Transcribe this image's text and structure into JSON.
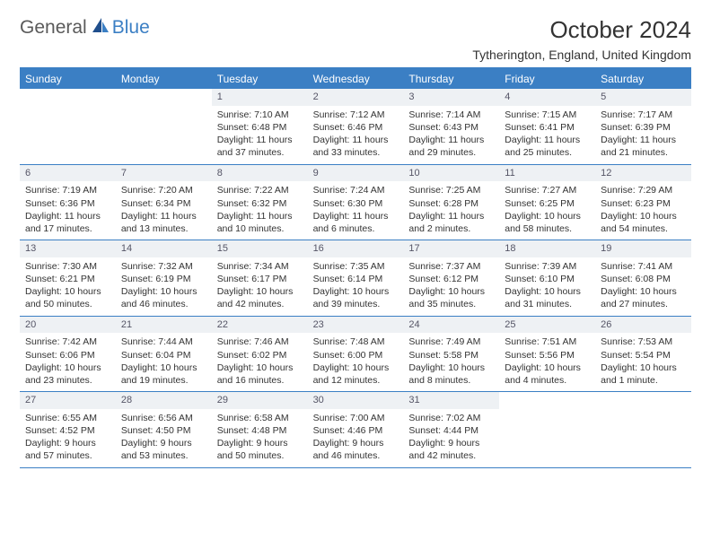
{
  "logo": {
    "text1": "General",
    "text2": "Blue"
  },
  "title": "October 2024",
  "location": "Tytherington, England, United Kingdom",
  "colors": {
    "accent": "#3b7fc4",
    "dayNumBg": "#eef1f4",
    "text": "#333333",
    "logoGray": "#5a5a5a"
  },
  "weekdays": [
    "Sunday",
    "Monday",
    "Tuesday",
    "Wednesday",
    "Thursday",
    "Friday",
    "Saturday"
  ],
  "weeks": [
    [
      {
        "num": "",
        "sunrise": "",
        "sunset": "",
        "daylight": ""
      },
      {
        "num": "",
        "sunrise": "",
        "sunset": "",
        "daylight": ""
      },
      {
        "num": "1",
        "sunrise": "Sunrise: 7:10 AM",
        "sunset": "Sunset: 6:48 PM",
        "daylight": "Daylight: 11 hours and 37 minutes."
      },
      {
        "num": "2",
        "sunrise": "Sunrise: 7:12 AM",
        "sunset": "Sunset: 6:46 PM",
        "daylight": "Daylight: 11 hours and 33 minutes."
      },
      {
        "num": "3",
        "sunrise": "Sunrise: 7:14 AM",
        "sunset": "Sunset: 6:43 PM",
        "daylight": "Daylight: 11 hours and 29 minutes."
      },
      {
        "num": "4",
        "sunrise": "Sunrise: 7:15 AM",
        "sunset": "Sunset: 6:41 PM",
        "daylight": "Daylight: 11 hours and 25 minutes."
      },
      {
        "num": "5",
        "sunrise": "Sunrise: 7:17 AM",
        "sunset": "Sunset: 6:39 PM",
        "daylight": "Daylight: 11 hours and 21 minutes."
      }
    ],
    [
      {
        "num": "6",
        "sunrise": "Sunrise: 7:19 AM",
        "sunset": "Sunset: 6:36 PM",
        "daylight": "Daylight: 11 hours and 17 minutes."
      },
      {
        "num": "7",
        "sunrise": "Sunrise: 7:20 AM",
        "sunset": "Sunset: 6:34 PM",
        "daylight": "Daylight: 11 hours and 13 minutes."
      },
      {
        "num": "8",
        "sunrise": "Sunrise: 7:22 AM",
        "sunset": "Sunset: 6:32 PM",
        "daylight": "Daylight: 11 hours and 10 minutes."
      },
      {
        "num": "9",
        "sunrise": "Sunrise: 7:24 AM",
        "sunset": "Sunset: 6:30 PM",
        "daylight": "Daylight: 11 hours and 6 minutes."
      },
      {
        "num": "10",
        "sunrise": "Sunrise: 7:25 AM",
        "sunset": "Sunset: 6:28 PM",
        "daylight": "Daylight: 11 hours and 2 minutes."
      },
      {
        "num": "11",
        "sunrise": "Sunrise: 7:27 AM",
        "sunset": "Sunset: 6:25 PM",
        "daylight": "Daylight: 10 hours and 58 minutes."
      },
      {
        "num": "12",
        "sunrise": "Sunrise: 7:29 AM",
        "sunset": "Sunset: 6:23 PM",
        "daylight": "Daylight: 10 hours and 54 minutes."
      }
    ],
    [
      {
        "num": "13",
        "sunrise": "Sunrise: 7:30 AM",
        "sunset": "Sunset: 6:21 PM",
        "daylight": "Daylight: 10 hours and 50 minutes."
      },
      {
        "num": "14",
        "sunrise": "Sunrise: 7:32 AM",
        "sunset": "Sunset: 6:19 PM",
        "daylight": "Daylight: 10 hours and 46 minutes."
      },
      {
        "num": "15",
        "sunrise": "Sunrise: 7:34 AM",
        "sunset": "Sunset: 6:17 PM",
        "daylight": "Daylight: 10 hours and 42 minutes."
      },
      {
        "num": "16",
        "sunrise": "Sunrise: 7:35 AM",
        "sunset": "Sunset: 6:14 PM",
        "daylight": "Daylight: 10 hours and 39 minutes."
      },
      {
        "num": "17",
        "sunrise": "Sunrise: 7:37 AM",
        "sunset": "Sunset: 6:12 PM",
        "daylight": "Daylight: 10 hours and 35 minutes."
      },
      {
        "num": "18",
        "sunrise": "Sunrise: 7:39 AM",
        "sunset": "Sunset: 6:10 PM",
        "daylight": "Daylight: 10 hours and 31 minutes."
      },
      {
        "num": "19",
        "sunrise": "Sunrise: 7:41 AM",
        "sunset": "Sunset: 6:08 PM",
        "daylight": "Daylight: 10 hours and 27 minutes."
      }
    ],
    [
      {
        "num": "20",
        "sunrise": "Sunrise: 7:42 AM",
        "sunset": "Sunset: 6:06 PM",
        "daylight": "Daylight: 10 hours and 23 minutes."
      },
      {
        "num": "21",
        "sunrise": "Sunrise: 7:44 AM",
        "sunset": "Sunset: 6:04 PM",
        "daylight": "Daylight: 10 hours and 19 minutes."
      },
      {
        "num": "22",
        "sunrise": "Sunrise: 7:46 AM",
        "sunset": "Sunset: 6:02 PM",
        "daylight": "Daylight: 10 hours and 16 minutes."
      },
      {
        "num": "23",
        "sunrise": "Sunrise: 7:48 AM",
        "sunset": "Sunset: 6:00 PM",
        "daylight": "Daylight: 10 hours and 12 minutes."
      },
      {
        "num": "24",
        "sunrise": "Sunrise: 7:49 AM",
        "sunset": "Sunset: 5:58 PM",
        "daylight": "Daylight: 10 hours and 8 minutes."
      },
      {
        "num": "25",
        "sunrise": "Sunrise: 7:51 AM",
        "sunset": "Sunset: 5:56 PM",
        "daylight": "Daylight: 10 hours and 4 minutes."
      },
      {
        "num": "26",
        "sunrise": "Sunrise: 7:53 AM",
        "sunset": "Sunset: 5:54 PM",
        "daylight": "Daylight: 10 hours and 1 minute."
      }
    ],
    [
      {
        "num": "27",
        "sunrise": "Sunrise: 6:55 AM",
        "sunset": "Sunset: 4:52 PM",
        "daylight": "Daylight: 9 hours and 57 minutes."
      },
      {
        "num": "28",
        "sunrise": "Sunrise: 6:56 AM",
        "sunset": "Sunset: 4:50 PM",
        "daylight": "Daylight: 9 hours and 53 minutes."
      },
      {
        "num": "29",
        "sunrise": "Sunrise: 6:58 AM",
        "sunset": "Sunset: 4:48 PM",
        "daylight": "Daylight: 9 hours and 50 minutes."
      },
      {
        "num": "30",
        "sunrise": "Sunrise: 7:00 AM",
        "sunset": "Sunset: 4:46 PM",
        "daylight": "Daylight: 9 hours and 46 minutes."
      },
      {
        "num": "31",
        "sunrise": "Sunrise: 7:02 AM",
        "sunset": "Sunset: 4:44 PM",
        "daylight": "Daylight: 9 hours and 42 minutes."
      },
      {
        "num": "",
        "sunrise": "",
        "sunset": "",
        "daylight": ""
      },
      {
        "num": "",
        "sunrise": "",
        "sunset": "",
        "daylight": ""
      }
    ]
  ]
}
